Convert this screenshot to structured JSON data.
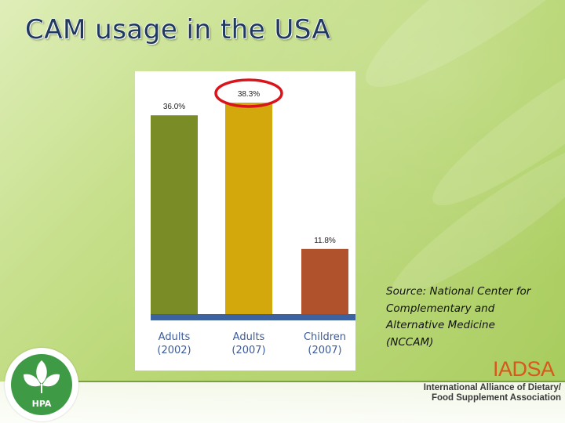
{
  "slide": {
    "title": "CAM usage in the USA",
    "source_lines": [
      "Source:  National Center for",
      "Complementary and",
      "Alternative Medicine",
      "(NCCAM)"
    ]
  },
  "chart_data": {
    "type": "bar",
    "title": "",
    "xlabel": "",
    "ylabel": "",
    "categories": [
      {
        "line1": "Adults",
        "line2": "(2002)"
      },
      {
        "line1": "Adults",
        "line2": "(2007)"
      },
      {
        "line1": "Children",
        "line2": "(2007)"
      }
    ],
    "values": [
      36.0,
      38.3,
      11.8
    ],
    "value_labels": [
      "36.0%",
      "38.3%",
      "11.8%"
    ],
    "bar_colors": [
      "#7a8c25",
      "#d3a80c",
      "#b0532c"
    ],
    "baseline_color": "#3d62a0",
    "category_label_color": "#3b5b9a",
    "highlight": {
      "index": 1,
      "shape": "ellipse",
      "color": "#d9141b"
    },
    "grid": false,
    "legend": "none"
  },
  "footer": {
    "logo_left_text": "HPA",
    "logo_right_text": "IADSA",
    "logo_right_subtitle": [
      "International Alliance of Dietary/",
      "Food Supplement Association"
    ],
    "colors": {
      "hpa_green": "#3f9a45",
      "iadsa_orange": "#d9561c"
    }
  }
}
